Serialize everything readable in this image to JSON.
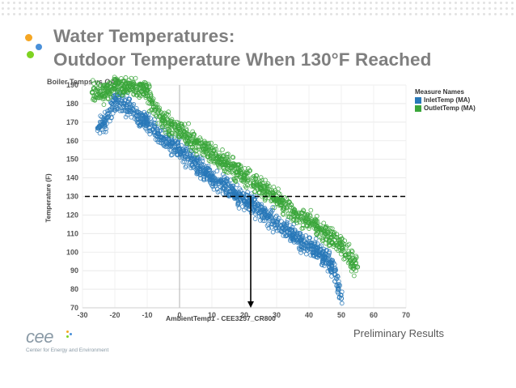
{
  "slide": {
    "title_line1": "Water Temperatures:",
    "title_line2": "Outdoor Temperature When 130°F Reached",
    "footnote": "Preliminary Results",
    "logo_text": "cee",
    "logo_subtitle": "Center for Energy and Environment",
    "bullet_colors": [
      "#f5a623",
      "#4a90d9",
      "#7ed321"
    ]
  },
  "chart_data": {
    "type": "scatter",
    "title": "Boiler Temps vs OAT",
    "xlabel": "AmbientTemp1 - CEE3257_CR800",
    "ylabel": "Temperature (F)",
    "xlim": [
      -30,
      70
    ],
    "ylim": [
      70,
      190
    ],
    "xticks": [
      -30,
      -20,
      -10,
      0,
      10,
      20,
      30,
      40,
      50,
      60,
      70
    ],
    "yticks": [
      70,
      80,
      90,
      100,
      110,
      120,
      130,
      140,
      150,
      160,
      170,
      180,
      190
    ],
    "legend_title": "Measure Names",
    "legend_position": "top-right",
    "series": [
      {
        "name": "InletTemp (MA)",
        "color": "#2878b8",
        "x": [
          -25,
          -22,
          -20,
          -18,
          -15,
          -12,
          -10,
          -5,
          0,
          5,
          10,
          15,
          20,
          25,
          30,
          35,
          40,
          45,
          48,
          50
        ],
        "y": [
          167,
          173,
          183,
          180,
          176,
          172,
          170,
          161,
          155,
          148,
          140,
          134,
          128,
          122,
          116,
          109,
          103,
          97,
          90,
          75
        ]
      },
      {
        "name": "OutletTemp (MA)",
        "color": "#3aa63a",
        "x": [
          -27,
          -22,
          -20,
          -15,
          -10,
          -8,
          -5,
          0,
          5,
          10,
          15,
          20,
          25,
          30,
          35,
          40,
          45,
          50,
          53,
          55
        ],
        "y": [
          186,
          187,
          190,
          189,
          187,
          178,
          171,
          166,
          159,
          153,
          147,
          141,
          135,
          129,
          122,
          116,
          110,
          104,
          96,
          92
        ]
      }
    ],
    "annotations": {
      "reference_y": 130,
      "reference_x": 22
    },
    "grid": true
  }
}
